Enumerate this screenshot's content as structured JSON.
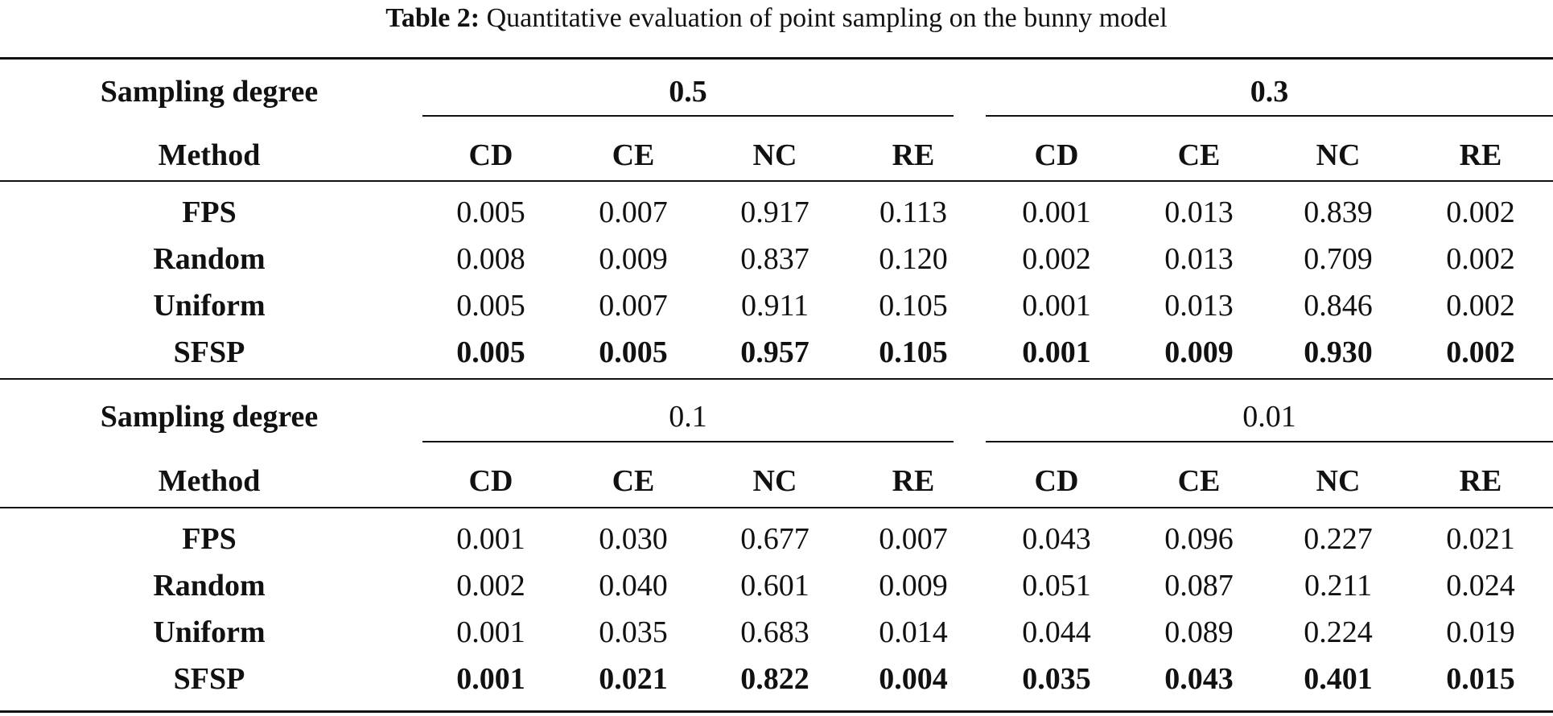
{
  "caption": {
    "label": "Table 2:",
    "text": " Quantitative evaluation of point sampling on the bunny model"
  },
  "header": {
    "sampling_label": "Sampling degree",
    "method_label": "Method",
    "metrics": [
      "CD",
      "CE",
      "NC",
      "RE"
    ]
  },
  "blocks": [
    {
      "degrees": [
        "0.5",
        "0.3"
      ],
      "rows": [
        {
          "method": "FPS",
          "values": [
            "0.005",
            "0.007",
            "0.917",
            "0.113",
            "0.001",
            "0.013",
            "0.839",
            "0.002"
          ]
        },
        {
          "method": "Random",
          "values": [
            "0.008",
            "0.009",
            "0.837",
            "0.120",
            "0.002",
            "0.013",
            "0.709",
            "0.002"
          ]
        },
        {
          "method": "Uniform",
          "values": [
            "0.005",
            "0.007",
            "0.911",
            "0.105",
            "0.001",
            "0.013",
            "0.846",
            "0.002"
          ]
        },
        {
          "method": "SFSP",
          "values": [
            "0.005",
            "0.005",
            "0.957",
            "0.105",
            "0.001",
            "0.009",
            "0.930",
            "0.002"
          ]
        }
      ]
    },
    {
      "degrees": [
        "0.1",
        "0.01"
      ],
      "rows": [
        {
          "method": "FPS",
          "values": [
            "0.001",
            "0.030",
            "0.677",
            "0.007",
            "0.043",
            "0.096",
            "0.227",
            "0.021"
          ]
        },
        {
          "method": "Random",
          "values": [
            "0.002",
            "0.040",
            "0.601",
            "0.009",
            "0.051",
            "0.087",
            "0.211",
            "0.024"
          ]
        },
        {
          "method": "Uniform",
          "values": [
            "0.001",
            "0.035",
            "0.683",
            "0.014",
            "0.044",
            "0.089",
            "0.224",
            "0.019"
          ]
        },
        {
          "method": "SFSP",
          "values": [
            "0.001",
            "0.021",
            "0.822",
            "0.004",
            "0.035",
            "0.043",
            "0.401",
            "0.015"
          ]
        }
      ]
    }
  ]
}
